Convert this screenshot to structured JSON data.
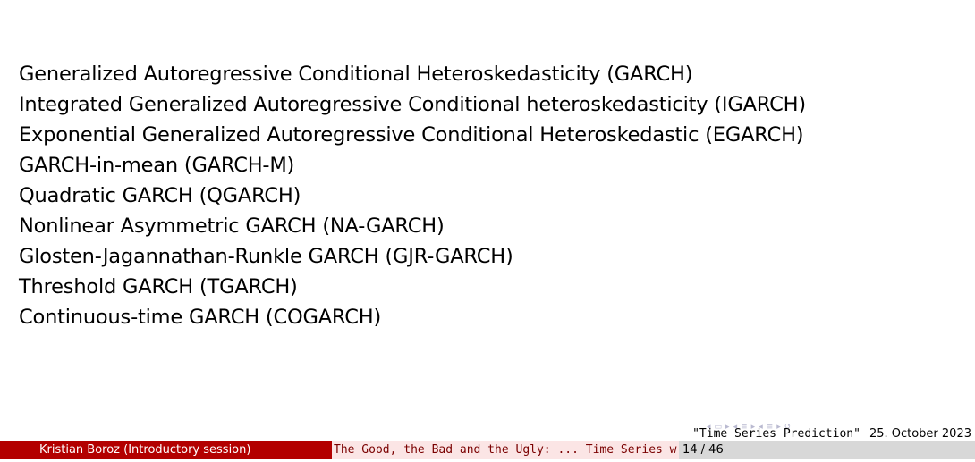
{
  "items": [
    "Generalized Autoregressive Conditional Heteroskedasticity (GARCH)",
    "Integrated Generalized Autoregressive Conditional heteroskedasticity (IGARCH)",
    "Exponential Generalized Autoregressive Conditional Heteroskedastic (EGARCH)",
    "GARCH-in-mean (GARCH-M)",
    "Quadratic GARCH (QGARCH)",
    "Nonlinear Asymmetric GARCH (NA-GARCH)",
    "Glosten-Jagannathan-Runkle GARCH (GJR-GARCH)",
    "Threshold GARCH (TGARCH)",
    "Continuous-time GARCH (COGARCH)"
  ],
  "caption": {
    "title": "\"Time Series Prediction\"",
    "date": "25. October 2023"
  },
  "footer": {
    "author": "Kristian Boroz  (Introductory session)",
    "talk_title": "The Good, the Bad and the Ugly: ... Time Series w",
    "page": "14 / 46"
  },
  "colors": {
    "footer_accent": "#b30000",
    "footer_light": "#fbe5e5",
    "footer_gray": "#d8d8d8"
  }
}
